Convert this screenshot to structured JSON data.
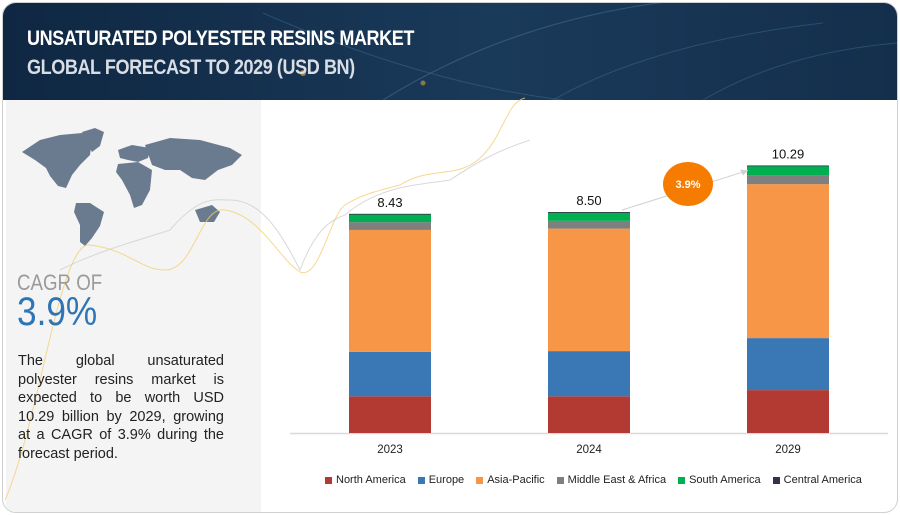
{
  "header": {
    "title": "UNSATURATED POLYESTER RESINS MARKET",
    "subtitle": "GLOBAL FORECAST TO 2029 (USD BN)"
  },
  "sidebar": {
    "cagr_label": "CAGR OF",
    "cagr_value": "3.9%",
    "description": "The global unsaturated polyester resins market is expected to be worth USD 10.29 billion by 2029, growing at a CAGR of 3.9% during the forecast period.",
    "icon": "world-map"
  },
  "chart_data": {
    "type": "bar",
    "stacked": true,
    "categories": [
      "2023",
      "2024",
      "2029"
    ],
    "totals": [
      "8.43",
      "8.50",
      "10.29"
    ],
    "cagr_badge": "3.9%",
    "ylim": [
      0,
      11
    ],
    "grid": false,
    "legend_position": "bottom",
    "series": [
      {
        "name": "North America",
        "color": "#b33a32",
        "values": [
          1.41,
          1.41,
          1.65
        ]
      },
      {
        "name": "Europe",
        "color": "#3a77b5",
        "values": [
          1.71,
          1.74,
          2.0
        ]
      },
      {
        "name": "Asia-Pacific",
        "color": "#f79646",
        "values": [
          4.69,
          4.71,
          5.92
        ]
      },
      {
        "name": "Middle East & Africa",
        "color": "#7f7f7f",
        "values": [
          0.3,
          0.3,
          0.35
        ]
      },
      {
        "name": "South America",
        "color": "#00b050",
        "values": [
          0.31,
          0.33,
          0.36
        ]
      },
      {
        "name": "Central America",
        "color": "#3b2e4a",
        "values": [
          0.01,
          0.01,
          0.01
        ]
      }
    ]
  }
}
